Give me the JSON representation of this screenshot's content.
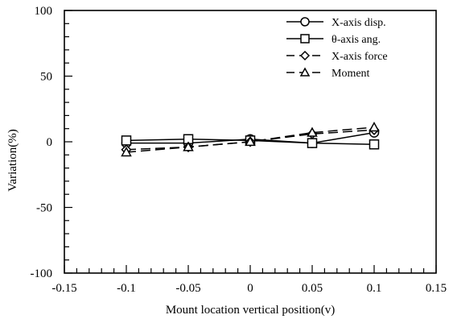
{
  "chart_data": {
    "type": "line",
    "xlabel": "Mount location vertical position(v)",
    "ylabel": "Variation(%)",
    "xlim": [
      -0.15,
      0.15
    ],
    "ylim": [
      -100,
      100
    ],
    "x_ticks": [
      -0.15,
      -0.1,
      -0.05,
      0,
      0.05,
      0.1,
      0.15
    ],
    "x_tick_labels": [
      "-0.15",
      "-0.1",
      "-0.05",
      "0",
      "0.05",
      "0.1",
      "0.15"
    ],
    "y_ticks": [
      -100,
      -50,
      0,
      50,
      100
    ],
    "y_tick_labels": [
      "-100",
      "-50",
      "0",
      "50",
      "100"
    ],
    "grid": false,
    "legend_position": "top-right",
    "x": [
      -0.1,
      -0.05,
      0,
      0.05,
      0.1
    ],
    "series": [
      {
        "name": "X-axis disp.",
        "values": [
          -1,
          -1,
          2,
          -1,
          7
        ],
        "marker": "circle",
        "line": "solid"
      },
      {
        "name": "θ-axis ang.",
        "values": [
          1,
          2,
          1,
          -1,
          -2
        ],
        "marker": "square",
        "line": "solid"
      },
      {
        "name": "X-axis force",
        "values": [
          -6,
          -4,
          0,
          6,
          9
        ],
        "marker": "diamond",
        "line": "dashed"
      },
      {
        "name": "Moment",
        "values": [
          -8,
          -4,
          0,
          7,
          11
        ],
        "marker": "triangle",
        "line": "dashed"
      }
    ]
  }
}
